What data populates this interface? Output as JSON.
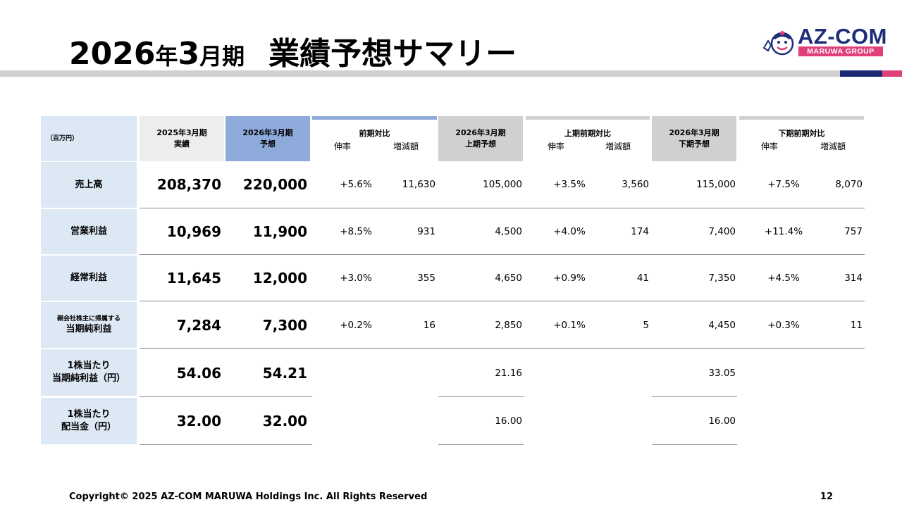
{
  "title": {
    "part1": "2026",
    "part2": "年",
    "part3": "3",
    "part4": "月期",
    "part5": "業績予想サマリー"
  },
  "logo": {
    "main": "AZ-COM",
    "sub": "MARUWA GROUP"
  },
  "table": {
    "unit": "（百万円）",
    "headers": {
      "fy2025": [
        "2025年3月期",
        "実績"
      ],
      "fy2026": [
        "2026年3月期",
        "予想"
      ],
      "yoy": [
        "前期対比",
        "伸率",
        "増減額"
      ],
      "h1": [
        "2026年3月期",
        "上期予想"
      ],
      "h1yoy": [
        "上期前期対比",
        "伸率",
        "増減額"
      ],
      "h2": [
        "2026年3月期",
        "下期予想"
      ],
      "h2yoy": [
        "下期前期対比",
        "伸率",
        "増減額"
      ]
    },
    "rows": [
      {
        "label": [
          "売上高"
        ],
        "fy2025": "208,370",
        "fy2026": "220,000",
        "yoy_rate": "+5.6%",
        "yoy_diff": "11,630",
        "h1": "105,000",
        "h1_rate": "+3.5%",
        "h1_diff": "3,560",
        "h2": "115,000",
        "h2_rate": "+7.5%",
        "h2_diff": "8,070"
      },
      {
        "label": [
          "営業利益"
        ],
        "fy2025": "10,969",
        "fy2026": "11,900",
        "yoy_rate": "+8.5%",
        "yoy_diff": "931",
        "h1": "4,500",
        "h1_rate": "+4.0%",
        "h1_diff": "174",
        "h2": "7,400",
        "h2_rate": "+11.4%",
        "h2_diff": "757"
      },
      {
        "label": [
          "経常利益"
        ],
        "fy2025": "11,645",
        "fy2026": "12,000",
        "yoy_rate": "+3.0%",
        "yoy_diff": "355",
        "h1": "4,650",
        "h1_rate": "+0.9%",
        "h1_diff": "41",
        "h2": "7,350",
        "h2_rate": "+4.5%",
        "h2_diff": "314"
      },
      {
        "label": [
          "親会社株主に帰属する",
          "当期純利益"
        ],
        "fy2025": "7,284",
        "fy2026": "7,300",
        "yoy_rate": "+0.2%",
        "yoy_diff": "16",
        "h1": "2,850",
        "h1_rate": "+0.1%",
        "h1_diff": "5",
        "h2": "4,450",
        "h2_rate": "+0.3%",
        "h2_diff": "11"
      },
      {
        "label": [
          "1株当たり",
          "当期純利益（円）"
        ],
        "fy2025": "54.06",
        "fy2026": "54.21",
        "h1": "21.16",
        "h2": "33.05"
      },
      {
        "label": [
          "1株当たり",
          "配当金（円）"
        ],
        "fy2025": "32.00",
        "fy2026": "32.00",
        "h1": "16.00",
        "h2": "16.00"
      }
    ]
  },
  "footer": "Copyright© 2025 AZ-COM MARUWA Holdings Inc. All Rights Reserved",
  "page_number": "12",
  "colors": {
    "label_bg": "#dde8f5",
    "fy2026_header": "#8eaadb",
    "grey_header": "#d0d0d0",
    "light_header": "#ededed",
    "navy": "#1c2b73",
    "pink": "#e0407a"
  }
}
